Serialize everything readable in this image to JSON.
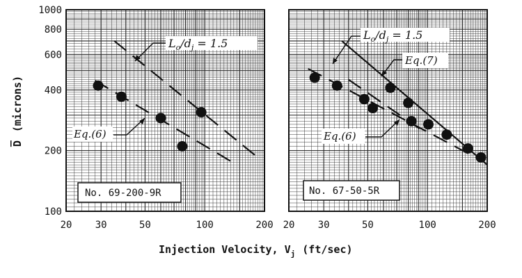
{
  "figure": {
    "xlabel": "Injection Velocity, V",
    "xlabel_sub": "j",
    "xlabel_units": "(ft/sec)",
    "ylabel_main": "D",
    "ylabel_units": "(microns)"
  },
  "chart_data": [
    {
      "type": "scatter",
      "panel_label": "No. 69-200-9R",
      "x_scale": "log",
      "y_scale": "log",
      "xlim": [
        20,
        200
      ],
      "ylim": [
        100,
        1000
      ],
      "x_ticks": [
        20,
        30,
        50,
        100,
        200
      ],
      "y_ticks": [
        100,
        200,
        400,
        600,
        800,
        1000
      ],
      "grid": true,
      "series": [
        {
          "name": "",
          "kind": "points",
          "x": [
            29,
            38,
            60,
            77,
            96
          ],
          "y": [
            420,
            370,
            290,
            210,
            310
          ]
        },
        {
          "name": "Eq.(6)",
          "kind": "dashed-line",
          "x": [
            28,
            145
          ],
          "y": [
            445,
            170
          ]
        },
        {
          "name": "L/d = 1.5",
          "kind": "dashed-line",
          "x": [
            35,
            185
          ],
          "y": [
            700,
            185
          ]
        }
      ],
      "annotations": [
        {
          "text": "L",
          "sub": "o",
          "text2": "/d",
          "sub2": "j",
          "text3": " = 1.5",
          "target": "L/d = 1.5"
        },
        {
          "text": "Eq.(6)",
          "target": "Eq.(6)"
        }
      ]
    },
    {
      "type": "scatter",
      "panel_label": "No. 67-50-5R",
      "x_scale": "log",
      "y_scale": "log",
      "xlim": [
        20,
        200
      ],
      "ylim": [
        100,
        1000
      ],
      "x_ticks": [
        20,
        30,
        50,
        100,
        200
      ],
      "y_ticks": [
        100,
        200,
        400,
        600,
        800,
        1000
      ],
      "grid": true,
      "series": [
        {
          "name": "",
          "kind": "points",
          "x": [
            27,
            35,
            48,
            53,
            65,
            80,
            83,
            101,
            125,
            160,
            186
          ],
          "y": [
            460,
            420,
            360,
            325,
            410,
            345,
            280,
            270,
            240,
            205,
            185
          ]
        },
        {
          "name": "Eq.(6)",
          "kind": "dashed-line",
          "x": [
            25,
            175
          ],
          "y": [
            510,
            185
          ]
        },
        {
          "name": "Eq.(7)",
          "kind": "solid-line",
          "x": [
            37,
            200
          ],
          "y": [
            700,
            170
          ]
        },
        {
          "name": "L/d = 1.5",
          "kind": "dashed-line",
          "x": [
            40,
            95
          ],
          "y": [
            450,
            250
          ]
        }
      ],
      "annotations": [
        {
          "text": "L",
          "sub": "o",
          "text2": "/d",
          "sub2": "j",
          "text3": " = 1.5",
          "target": "L/d = 1.5"
        },
        {
          "text": "Eq.(7)",
          "target": "Eq.(7)"
        },
        {
          "text": "Eq.(6)",
          "target": "Eq.(6)"
        }
      ]
    }
  ]
}
